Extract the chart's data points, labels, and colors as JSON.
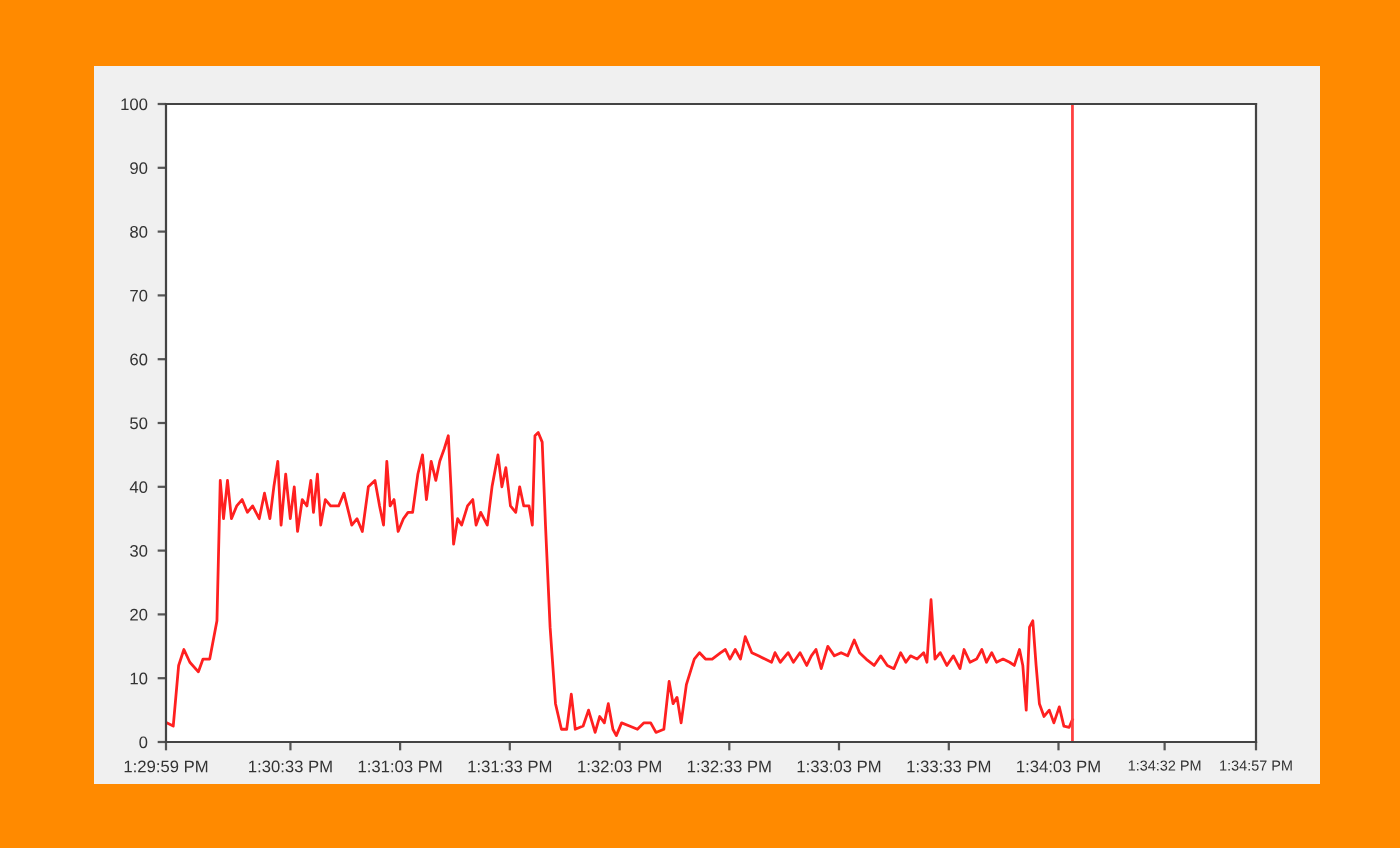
{
  "chart_data": {
    "type": "line",
    "xlim": [
      13.49972,
      13.5825
    ],
    "ylim": [
      0,
      100
    ],
    "yticks": [
      0,
      10,
      20,
      30,
      40,
      50,
      60,
      70,
      80,
      90,
      100
    ],
    "xticks": [
      {
        "value": 13.49972,
        "label": "1:29:59 PM"
      },
      {
        "value": 13.50917,
        "label": "1:30:33 PM"
      },
      {
        "value": 13.5175,
        "label": "1:31:03 PM"
      },
      {
        "value": 13.52583,
        "label": "1:31:33 PM"
      },
      {
        "value": 13.53417,
        "label": "1:32:03 PM"
      },
      {
        "value": 13.5425,
        "label": "1:32:33 PM"
      },
      {
        "value": 13.55083,
        "label": "1:33:03 PM"
      },
      {
        "value": 13.55917,
        "label": "1:33:33 PM"
      },
      {
        "value": 13.5675,
        "label": "1:34:03 PM"
      },
      {
        "value": 13.57556,
        "label": "1:34:32 PM"
      },
      {
        "value": 13.5825,
        "label": "1:34:57 PM"
      }
    ],
    "grid": false,
    "legend": false,
    "marker": "none",
    "line_style": "solid",
    "ref_lines": [
      {
        "axis": "x",
        "value": 13.56856,
        "color": "#ff4040"
      }
    ],
    "series": [
      {
        "color": "#ff2020",
        "x": [
          13.49977,
          13.50027,
          13.50068,
          13.50108,
          13.50153,
          13.50218,
          13.50253,
          13.50304,
          13.50359,
          13.50384,
          13.50409,
          13.50439,
          13.50469,
          13.50509,
          13.5055,
          13.5059,
          13.5063,
          13.5068,
          13.5072,
          13.50761,
          13.50791,
          13.50821,
          13.50846,
          13.50881,
          13.50916,
          13.50946,
          13.50971,
          13.51007,
          13.51042,
          13.51072,
          13.51092,
          13.51122,
          13.51147,
          13.51182,
          13.51222,
          13.51283,
          13.51323,
          13.51383,
          13.51423,
          13.51463,
          13.51509,
          13.51559,
          13.51594,
          13.51624,
          13.51649,
          13.51674,
          13.51704,
          13.51735,
          13.51775,
          13.5181,
          13.51845,
          13.51885,
          13.5192,
          13.5195,
          13.51986,
          13.52021,
          13.52051,
          13.52086,
          13.52116,
          13.52136,
          13.52156,
          13.52187,
          13.52217,
          13.52262,
          13.52302,
          13.52327,
          13.52362,
          13.52412,
          13.52448,
          13.52493,
          13.52523,
          13.52553,
          13.52588,
          13.52628,
          13.52658,
          13.52689,
          13.52729,
          13.52754,
          13.52774,
          13.52799,
          13.52829,
          13.52854,
          13.52889,
          13.5293,
          13.52975,
          13.53015,
          13.5305,
          13.5308,
          13.5314,
          13.53181,
          13.53231,
          13.53266,
          13.53301,
          13.53331,
          13.53366,
          13.53392,
          13.53432,
          13.53492,
          13.53552,
          13.53602,
          13.53653,
          13.53693,
          13.53753,
          13.53793,
          13.53823,
          13.53853,
          13.53884,
          13.53924,
          13.53984,
          13.54024,
          13.54069,
          13.5412,
          13.54185,
          13.5422,
          13.54255,
          13.54295,
          13.54335,
          13.54371,
          13.54421,
          13.54471,
          13.54521,
          13.54571,
          13.54597,
          13.54637,
          13.54697,
          13.54737,
          13.54787,
          13.54838,
          13.54873,
          13.54908,
          13.54948,
          13.54998,
          13.55048,
          13.55099,
          13.55149,
          13.55199,
          13.55239,
          13.55289,
          13.5535,
          13.554,
          13.5545,
          13.555,
          13.55551,
          13.55591,
          13.55626,
          13.55676,
          13.55726,
          13.55751,
          13.55782,
          13.55812,
          13.55852,
          13.55902,
          13.55952,
          13.56002,
          13.56033,
          13.56078,
          13.56128,
          13.56168,
          13.56203,
          13.56243,
          13.56279,
          13.56329,
          13.56379,
          13.56414,
          13.56454,
          13.56479,
          13.56505,
          13.5653,
          13.56555,
          13.5658,
          13.56605,
          13.5664,
          13.5668,
          13.56715,
          13.56756,
          13.56791,
          13.56831,
          13.56856
        ],
        "values": [
          3,
          2.5,
          12,
          14.5,
          12.5,
          11,
          13,
          13,
          19,
          41,
          35,
          41,
          35,
          37,
          38,
          36,
          37,
          35,
          39,
          35,
          40,
          44,
          34,
          42,
          35,
          40,
          33,
          38,
          37,
          41,
          36,
          42,
          34,
          38,
          37,
          37,
          39,
          34,
          35,
          33,
          40,
          41,
          37,
          34,
          44,
          37,
          38,
          33,
          35,
          36,
          36,
          42,
          45,
          38,
          44,
          41,
          44,
          46,
          48,
          40,
          31,
          35,
          34,
          37,
          38,
          34,
          36,
          34,
          40,
          45,
          40,
          43,
          37,
          36,
          40,
          37,
          37,
          34,
          48,
          48.5,
          47,
          34,
          18,
          6,
          2,
          2,
          7.5,
          2,
          2.5,
          5,
          1.5,
          4,
          3,
          6,
          2,
          1,
          3,
          2.5,
          2,
          3,
          3,
          1.5,
          2,
          9.5,
          6,
          7,
          3,
          9,
          13,
          14,
          13,
          13,
          14,
          14.5,
          13,
          14.5,
          13,
          16.5,
          14,
          13.5,
          13,
          12.5,
          14,
          12.5,
          14,
          12.5,
          14,
          12,
          13.5,
          14.5,
          11.5,
          15,
          13.5,
          14,
          13.5,
          16,
          14,
          13,
          12,
          13.5,
          12,
          11.5,
          14,
          12.5,
          13.5,
          13,
          14,
          12.5,
          22.3,
          13,
          14,
          12,
          13.5,
          11.5,
          14.5,
          12.5,
          13,
          14.5,
          12.5,
          14,
          12.5,
          13,
          12.5,
          12,
          14.5,
          12,
          5,
          18,
          19,
          12,
          6,
          4,
          5,
          3,
          5.5,
          2.5,
          2.3,
          3.5
        ]
      }
    ]
  }
}
